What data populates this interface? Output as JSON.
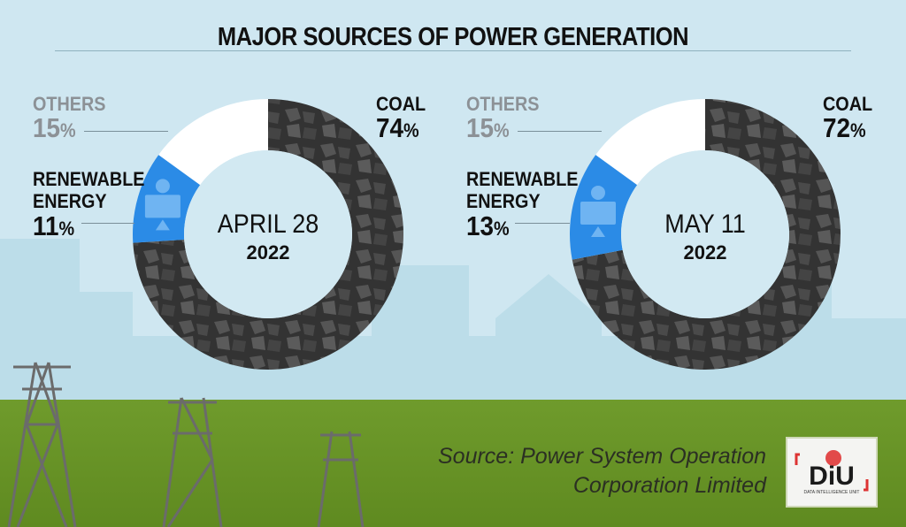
{
  "title": "MAJOR SOURCES OF POWER GENERATION",
  "source_line1": "Source: Power System Operation",
  "source_line2": "Corporation Limited",
  "logo_text": "DiU",
  "logo_subtext": "DATA INTELLIGENCE UNIT",
  "colors": {
    "coal": "#3a3939",
    "renewable": "#2b8be6",
    "others": "#ffffff",
    "sky": "#cfe7f1",
    "grass": "#6f9a2a"
  },
  "chart_data": [
    {
      "type": "pie",
      "title": "APRIL 28",
      "subtitle": "2022",
      "categories": [
        "COAL",
        "RENEWABLE ENERGY",
        "OTHERS"
      ],
      "values": [
        74,
        11,
        15
      ],
      "labels": [
        "74%",
        "11%",
        "15%"
      ]
    },
    {
      "type": "pie",
      "title": "MAY 11",
      "subtitle": "2022",
      "categories": [
        "COAL",
        "RENEWABLE ENERGY",
        "OTHERS"
      ],
      "values": [
        72,
        13,
        15
      ],
      "labels": [
        "72%",
        "13%",
        "15%"
      ]
    }
  ]
}
